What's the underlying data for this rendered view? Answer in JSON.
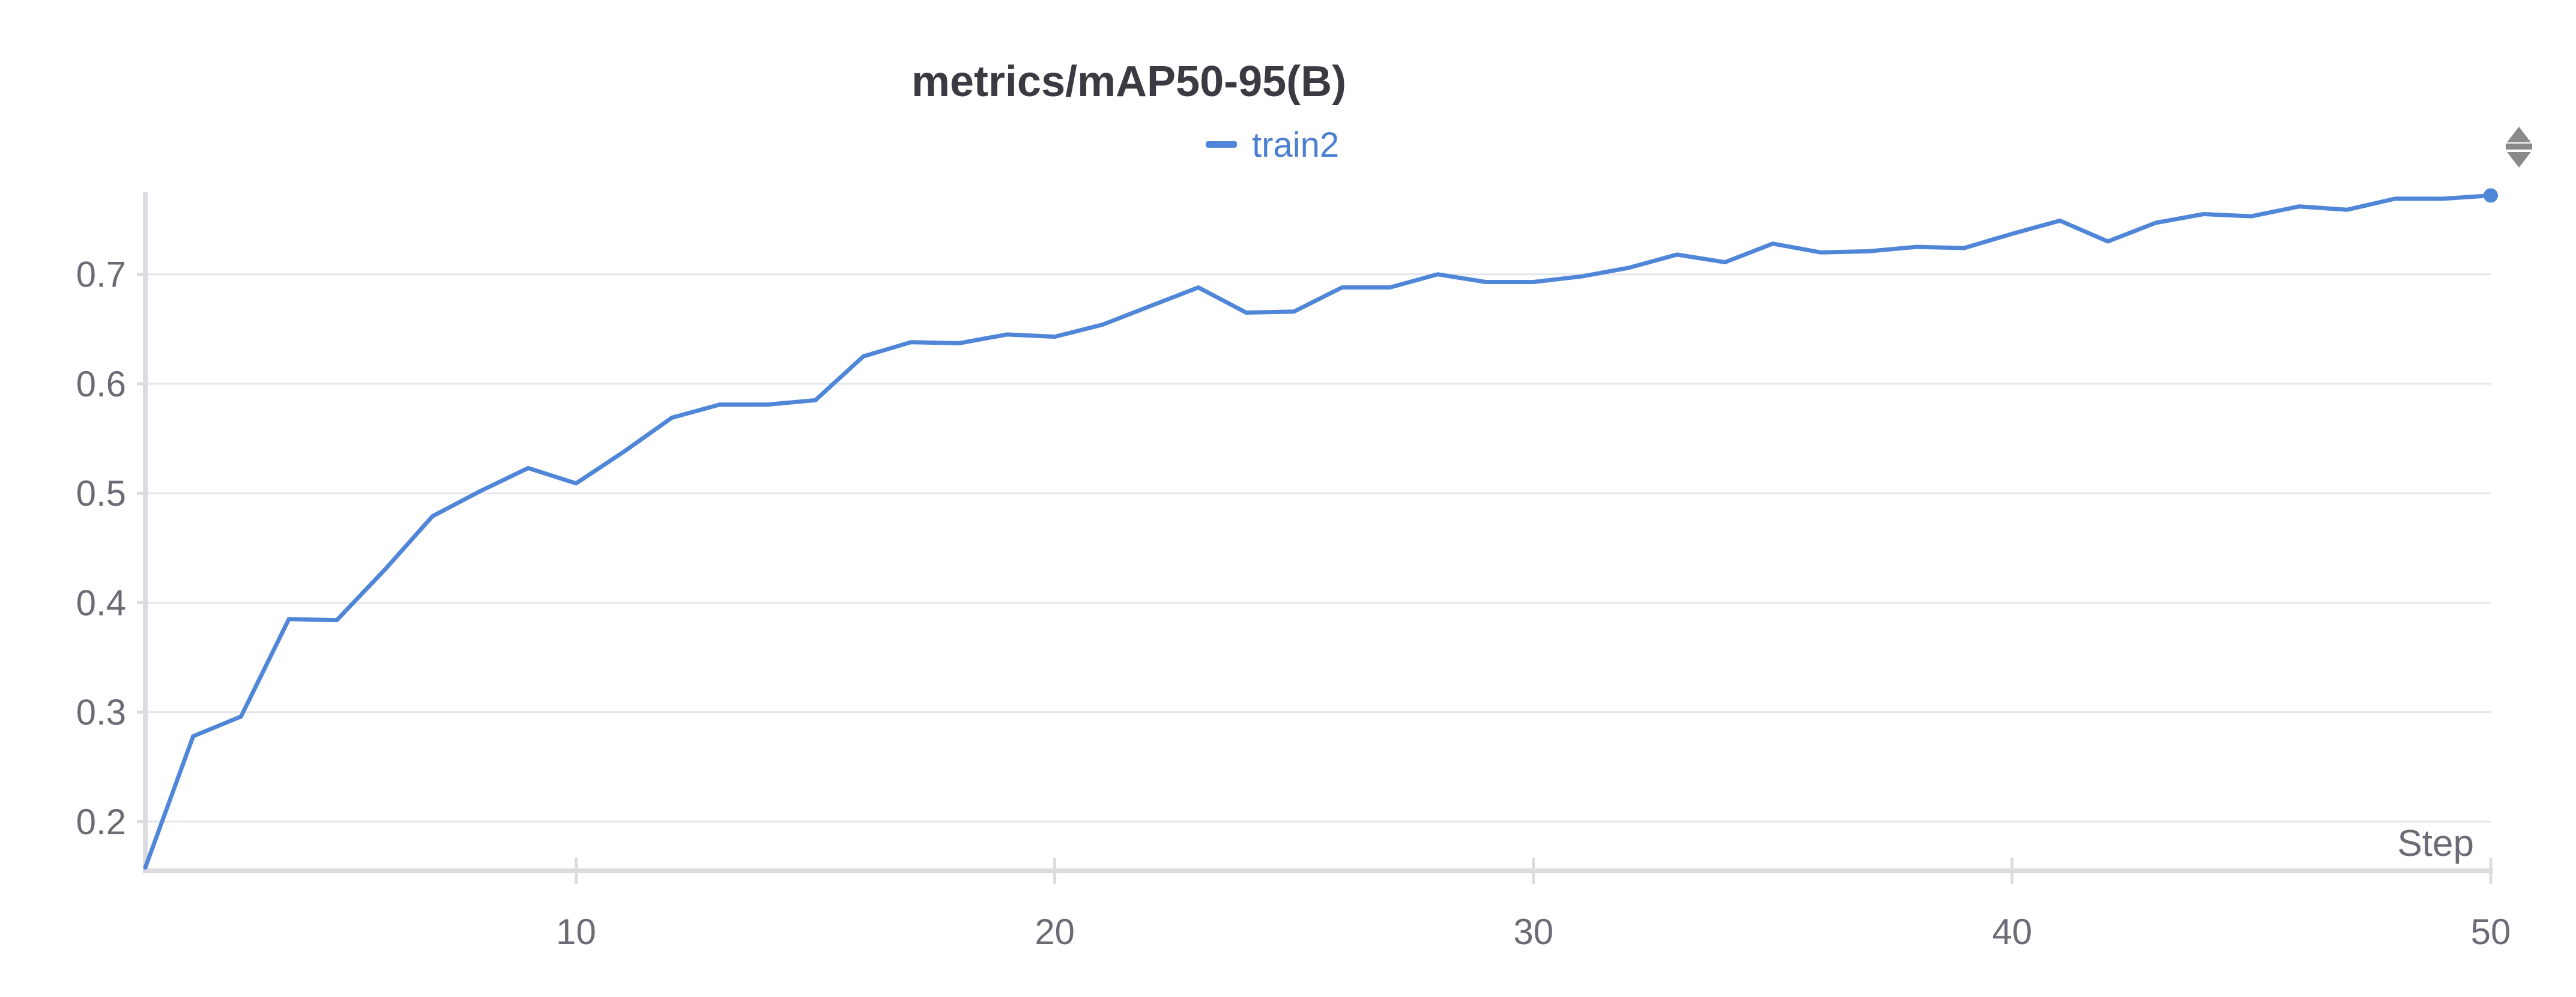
{
  "chart_data": {
    "type": "line",
    "title": "metrics/mAP50-95(B)",
    "xlabel": "Step",
    "ylabel": "",
    "xlim": [
      1,
      50
    ],
    "ylim": [
      0.155,
      0.775
    ],
    "xticks": [
      10,
      20,
      30,
      40,
      50
    ],
    "yticks": [
      0.2,
      0.3,
      0.4,
      0.5,
      0.6,
      0.7
    ],
    "grid": true,
    "legend_position": "top-center",
    "colors": {
      "series": "#4f86d8",
      "grid": "#e6e6ea",
      "axis": "#dcdce0"
    },
    "series": [
      {
        "name": "train2",
        "x": [
          1,
          2,
          3,
          4,
          5,
          6,
          7,
          8,
          9,
          10,
          11,
          12,
          13,
          14,
          15,
          16,
          17,
          18,
          19,
          20,
          21,
          22,
          23,
          24,
          25,
          26,
          27,
          28,
          29,
          30,
          31,
          32,
          33,
          34,
          35,
          36,
          37,
          38,
          39,
          40,
          41,
          42,
          43,
          44,
          45,
          46,
          47,
          48,
          49,
          50
        ],
        "y": [
          0.158,
          0.278,
          0.296,
          0.385,
          0.384,
          0.43,
          0.479,
          0.502,
          0.523,
          0.509,
          0.538,
          0.569,
          0.581,
          0.581,
          0.585,
          0.625,
          0.638,
          0.637,
          0.645,
          0.643,
          0.654,
          0.671,
          0.688,
          0.665,
          0.666,
          0.688,
          0.688,
          0.7,
          0.693,
          0.693,
          0.698,
          0.706,
          0.718,
          0.711,
          0.728,
          0.72,
          0.721,
          0.725,
          0.724,
          0.737,
          0.749,
          0.73,
          0.747,
          0.755,
          0.753,
          0.762,
          0.759,
          0.769,
          0.769,
          0.772
        ]
      }
    ]
  }
}
